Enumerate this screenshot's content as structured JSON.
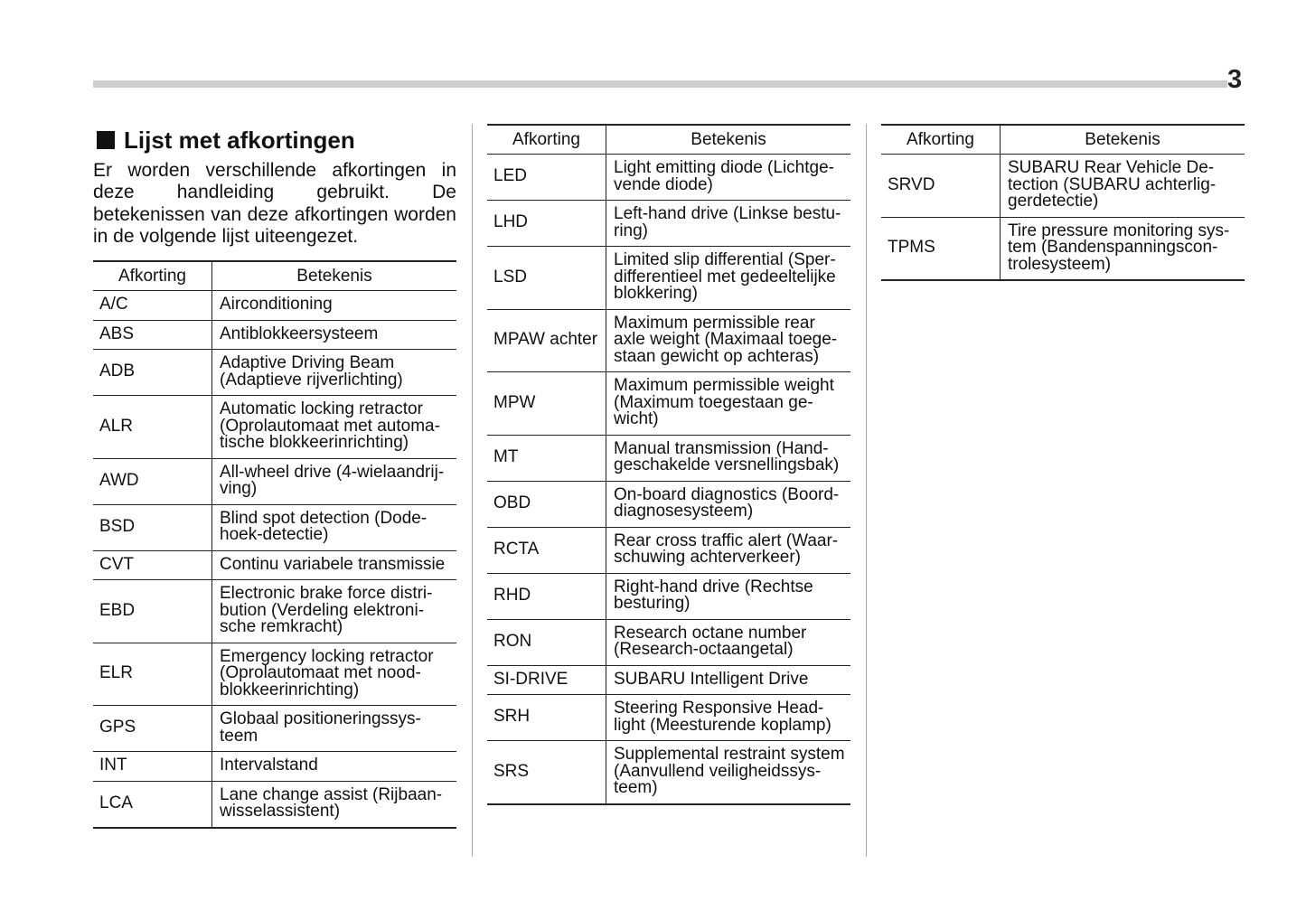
{
  "page_number": "3",
  "section": {
    "title": "Lijst met afkortingen",
    "intro": "Er worden verschillende afkortingen in deze handleiding gebruikt. De betekenissen van deze afkortingen worden in de volgende lijst uiteengezet."
  },
  "headers": {
    "abbr": "Afkorting",
    "meaning": "Betekenis"
  },
  "tables": [
    [
      {
        "abbr": "A/C",
        "meaning": "Airconditioning"
      },
      {
        "abbr": "ABS",
        "meaning": "Antiblokkeersysteem"
      },
      {
        "abbr": "ADB",
        "meaning": "Adaptive Driving Beam\n(Adaptieve rijverlichting)"
      },
      {
        "abbr": "ALR",
        "meaning": "Automatic locking retractor\n(Oprolautomaat met automa-\ntische blokkeerinrichting)"
      },
      {
        "abbr": "AWD",
        "meaning": "All-wheel drive (4-wielaandrij-\nving)"
      },
      {
        "abbr": "BSD",
        "meaning": "Blind spot detection (Dode-\nhoek-detectie)"
      },
      {
        "abbr": "CVT",
        "meaning": "Continu variabele transmissie"
      },
      {
        "abbr": "EBD",
        "meaning": "Electronic brake force distri-\nbution (Verdeling elektroni-\nsche remkracht)"
      },
      {
        "abbr": "ELR",
        "meaning": "Emergency locking retractor\n(Oprolautomaat met nood-\nblokkeerinrichting)"
      },
      {
        "abbr": "GPS",
        "meaning": "Globaal positioneringssys-\nteem"
      },
      {
        "abbr": "INT",
        "meaning": "Intervalstand"
      },
      {
        "abbr": "LCA",
        "meaning": "Lane change assist (Rijbaan-\nwisselassistent)"
      }
    ],
    [
      {
        "abbr": "LED",
        "meaning": "Light emitting diode (Lichtge-\nvende diode)"
      },
      {
        "abbr": "LHD",
        "meaning": "Left-hand drive (Linkse bestu-\nring)"
      },
      {
        "abbr": "LSD",
        "meaning": "Limited slip differential (Sper-\ndifferentieel met gedeeltelijke\nblokkering)"
      },
      {
        "abbr": "MPAW achter",
        "meaning": "Maximum permissible rear\naxle weight (Maximaal toege-\nstaan gewicht op achteras)"
      },
      {
        "abbr": "MPW",
        "meaning": "Maximum permissible weight\n(Maximum toegestaan ge-\nwicht)"
      },
      {
        "abbr": "MT",
        "meaning": "Manual transmission (Hand-\ngeschakelde versnellingsbak)"
      },
      {
        "abbr": "OBD",
        "meaning": "On-board diagnostics (Boord-\ndiagnosesysteem)"
      },
      {
        "abbr": "RCTA",
        "meaning": "Rear cross traffic alert (Waar-\nschuwing achterverkeer)"
      },
      {
        "abbr": "RHD",
        "meaning": "Right-hand drive (Rechtse\nbesturing)"
      },
      {
        "abbr": "RON",
        "meaning": "Research octane number\n(Research-octaangetal)"
      },
      {
        "abbr": "SI-DRIVE",
        "meaning": "SUBARU Intelligent Drive"
      },
      {
        "abbr": "SRH",
        "meaning": "Steering Responsive Head-\nlight (Meesturende koplamp)"
      },
      {
        "abbr": "SRS",
        "meaning": "Supplemental restraint system\n(Aanvullend veiligheidssys-\nteem)"
      }
    ],
    [
      {
        "abbr": "SRVD",
        "meaning": "SUBARU Rear Vehicle De-\ntection (SUBARU achterlig-\ngerdetectie)"
      },
      {
        "abbr": "TPMS",
        "meaning": "Tire pressure monitoring sys-\ntem (Bandenspanningscon-\ntrolesysteem)"
      }
    ]
  ]
}
